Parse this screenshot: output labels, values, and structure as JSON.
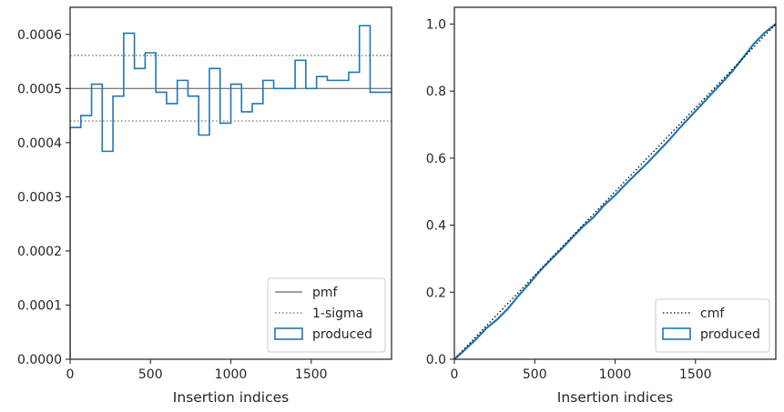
{
  "chart_data": [
    {
      "type": "step",
      "xlabel": "Insertion indices",
      "ylabel": "",
      "xlim": [
        0,
        2000
      ],
      "ylim": [
        0,
        0.00065
      ],
      "xticks": [
        0,
        500,
        1000,
        1500
      ],
      "xtick_labels": [
        "0",
        "500",
        "1000",
        "1500"
      ],
      "yticks": [
        0,
        0.0001,
        0.0002,
        0.0003,
        0.0004,
        0.0005,
        0.0006
      ],
      "ytick_labels": [
        "0.0000",
        "0.0001",
        "0.0002",
        "0.0003",
        "0.0004",
        "0.0005",
        "0.0006"
      ],
      "grid": false,
      "legend_position": "lower right",
      "colors": {
        "produced": "#1f77b4",
        "pmf": "#808080",
        "sigma": "#808080"
      },
      "lines": [
        {
          "name": "pmf",
          "y": 0.0005,
          "style": "solid"
        },
        {
          "name": "1-sigma",
          "y": 0.000561,
          "style": "dotted"
        },
        {
          "name": "1-sigma",
          "y": 0.00044,
          "style": "dotted"
        }
      ],
      "legend": [
        "pmf",
        "1-sigma",
        "produced"
      ],
      "series": [
        {
          "name": "produced",
          "bin_width": 66.67,
          "values": [
            0.000428,
            0.00045,
            0.000508,
            0.000384,
            0.000486,
            0.000602,
            0.000537,
            0.000566,
            0.000493,
            0.000472,
            0.000515,
            0.000486,
            0.000414,
            0.000537,
            0.000436,
            0.000508,
            0.000457,
            0.000472,
            0.000515,
            0.0005,
            0.0005,
            0.000552,
            0.0005,
            0.000522,
            0.000515,
            0.000515,
            0.00053,
            0.000616,
            0.000493,
            0.000493
          ]
        }
      ]
    },
    {
      "type": "line",
      "xlabel": "Insertion indices",
      "ylabel": "",
      "xlim": [
        0,
        2000
      ],
      "ylim": [
        0,
        1.05
      ],
      "xticks": [
        0,
        500,
        1000,
        1500
      ],
      "xtick_labels": [
        "0",
        "500",
        "1000",
        "1500"
      ],
      "yticks": [
        0,
        0.2,
        0.4,
        0.6,
        0.8,
        1.0
      ],
      "ytick_labels": [
        "0.0",
        "0.2",
        "0.4",
        "0.6",
        "0.8",
        "1.0"
      ],
      "grid": false,
      "legend_position": "lower right",
      "colors": {
        "produced": "#1f77b4",
        "cmf": "#000000"
      },
      "legend": [
        "cmf",
        "produced"
      ],
      "series": [
        {
          "name": "cmf",
          "style": "dotted",
          "x": [
            0,
            2000
          ],
          "y": [
            0,
            1.0
          ]
        },
        {
          "name": "produced",
          "x": [
            0,
            67,
            133,
            200,
            267,
            333,
            400,
            467,
            533,
            600,
            667,
            733,
            800,
            867,
            933,
            1000,
            1067,
            1133,
            1200,
            1267,
            1333,
            1400,
            1467,
            1533,
            1600,
            1667,
            1733,
            1800,
            1867,
            1933,
            2000
          ],
          "y": [
            0,
            0.029,
            0.059,
            0.093,
            0.119,
            0.151,
            0.19,
            0.226,
            0.264,
            0.297,
            0.329,
            0.363,
            0.396,
            0.424,
            0.46,
            0.489,
            0.523,
            0.554,
            0.585,
            0.619,
            0.652,
            0.689,
            0.723,
            0.757,
            0.792,
            0.826,
            0.861,
            0.902,
            0.943,
            0.975,
            1.0
          ]
        }
      ]
    }
  ]
}
